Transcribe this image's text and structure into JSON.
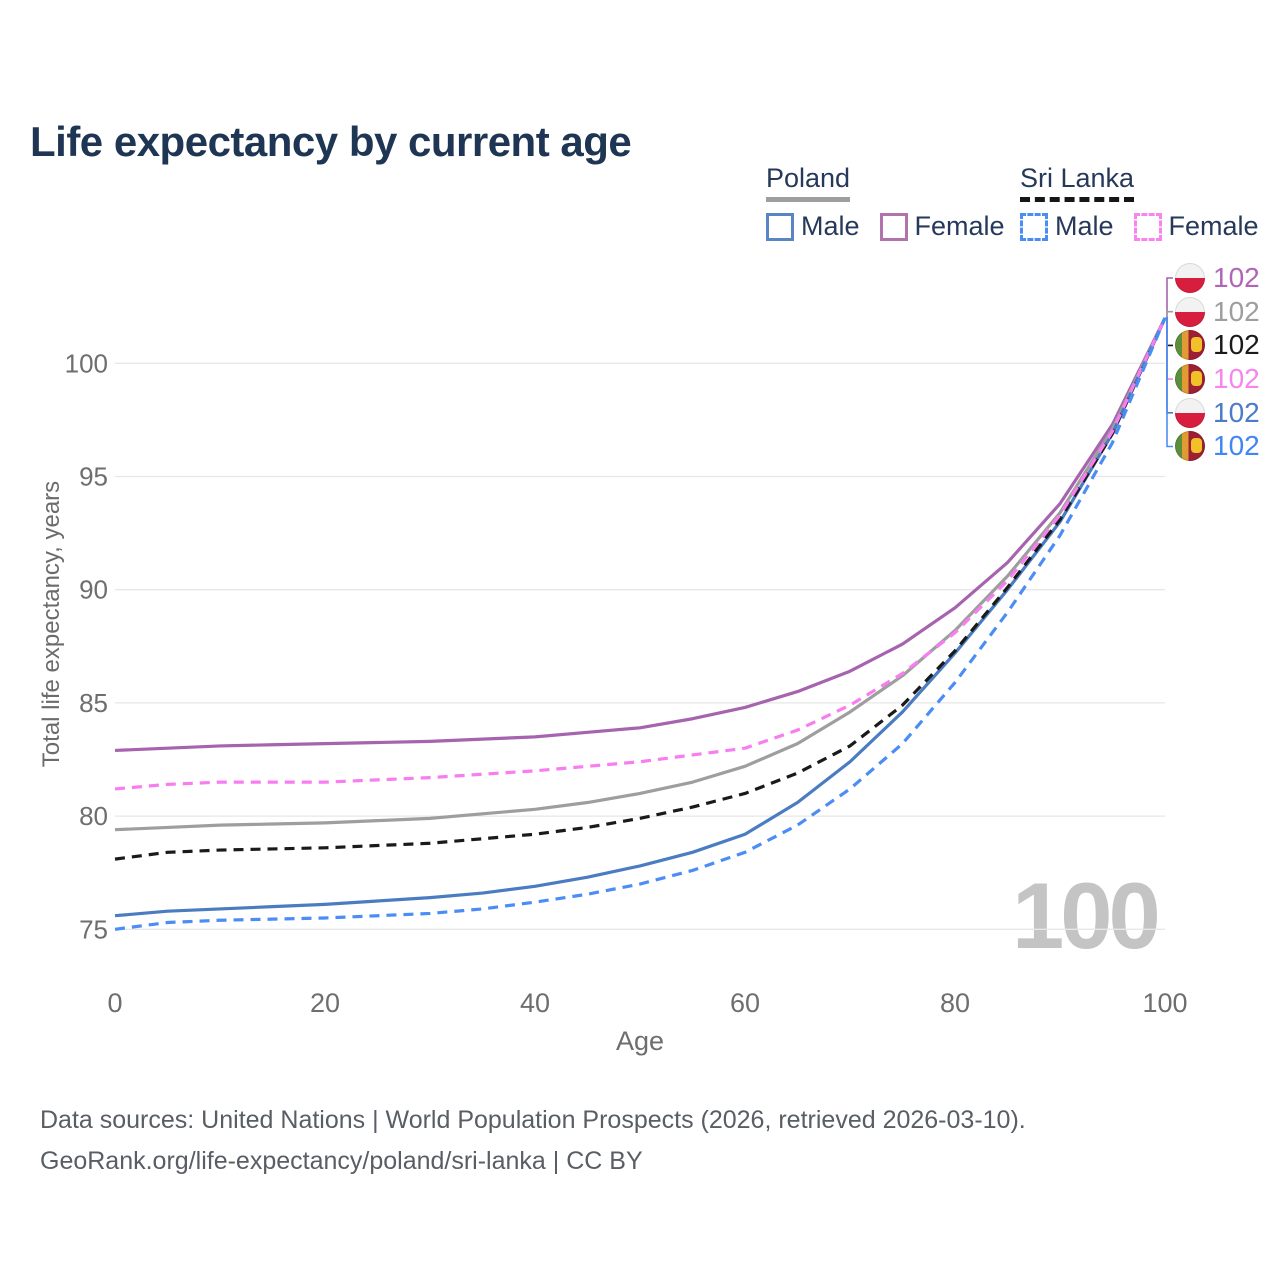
{
  "title": "Life expectancy by current age",
  "legend": {
    "poland": {
      "label": "Poland",
      "male_label": "Male",
      "female_label": "Female"
    },
    "sri_lanka": {
      "label": "Sri Lanka",
      "male_label": "Male",
      "female_label": "Female"
    }
  },
  "axes": {
    "y_title": "Total life expectancy, years",
    "x_title": "Age"
  },
  "watermark": "100",
  "colors": {
    "poland_male": "#4a7cc2",
    "poland_female": "#a663ae",
    "poland_all": "#9e9e9e",
    "sri_lanka_male": "#4c8df5",
    "sri_lanka_female": "#f77df0",
    "sri_lanka_all": "#1a1a1a",
    "legend_poland_male_box": "#5b84c4",
    "legend_poland_female_box": "#b273ad",
    "legend_sri_lanka_male_box": "#4c8df5",
    "legend_sri_lanka_female_box": "#f884f0",
    "title_text": "#1e3553",
    "axis_text": "#6e6e6e",
    "grid": "#e7e7e7",
    "watermark_text": "#c4c4c4"
  },
  "end_labels": [
    {
      "flag": "poland",
      "value": "102",
      "color": "#b065b8",
      "series": 0
    },
    {
      "flag": "poland",
      "value": "102",
      "color": "#9e9e9e",
      "series": 1
    },
    {
      "flag": "sri-lanka",
      "value": "102",
      "color": "#1a1a1a",
      "series": 2
    },
    {
      "flag": "sri-lanka",
      "value": "102",
      "color": "#f884f0",
      "series": 3
    },
    {
      "flag": "poland",
      "value": "102",
      "color": "#4a7cc7",
      "series": 4
    },
    {
      "flag": "sri-lanka",
      "value": "102",
      "color": "#4285f4",
      "series": 5
    }
  ],
  "footer": {
    "line1": "Data sources: United Nations | World Population Prospects (2026, retrieved 2026-03-10).",
    "line2": "GeoRank.org/life-expectancy/poland/sri-lanka | CC BY"
  },
  "chart_data": {
    "type": "line",
    "title": "Life expectancy by current age",
    "xlabel": "Age",
    "ylabel": "Total life expectancy, years",
    "xlim": [
      0,
      100
    ],
    "ylim": [
      74,
      103
    ],
    "x_ticks": [
      0,
      20,
      40,
      60,
      80,
      100
    ],
    "y_ticks": [
      75,
      80,
      85,
      90,
      95,
      100
    ],
    "grid": "horizontal",
    "legend_position": "top-right",
    "x": [
      0,
      5,
      10,
      15,
      20,
      25,
      30,
      35,
      40,
      45,
      50,
      55,
      60,
      65,
      70,
      75,
      80,
      85,
      90,
      95,
      100
    ],
    "series": [
      {
        "name": "Poland Female",
        "country": "Poland",
        "sex": "female",
        "style": "solid",
        "color": "#a663ae",
        "values": [
          82.9,
          83.0,
          83.1,
          83.15,
          83.2,
          83.25,
          83.3,
          83.4,
          83.5,
          83.7,
          83.9,
          84.3,
          84.8,
          85.5,
          86.4,
          87.6,
          89.2,
          91.2,
          93.8,
          97.3,
          102
        ]
      },
      {
        "name": "Poland Both sexes",
        "country": "Poland",
        "sex": "all",
        "style": "solid",
        "color": "#9e9e9e",
        "values": [
          79.4,
          79.5,
          79.6,
          79.65,
          79.7,
          79.8,
          79.9,
          80.1,
          80.3,
          80.6,
          81.0,
          81.5,
          82.2,
          83.2,
          84.6,
          86.2,
          88.2,
          90.6,
          93.4,
          97.1,
          102
        ]
      },
      {
        "name": "Sri Lanka Both sexes",
        "country": "Sri Lanka",
        "sex": "all",
        "style": "dashed",
        "color": "#1a1a1a",
        "values": [
          78.1,
          78.4,
          78.5,
          78.55,
          78.6,
          78.7,
          78.8,
          79.0,
          79.2,
          79.5,
          79.9,
          80.4,
          81.0,
          81.9,
          83.1,
          84.9,
          87.3,
          90.1,
          93.1,
          96.9,
          102
        ]
      },
      {
        "name": "Sri Lanka Female",
        "country": "Sri Lanka",
        "sex": "female",
        "style": "dashed",
        "color": "#f77df0",
        "values": [
          81.2,
          81.4,
          81.5,
          81.5,
          81.5,
          81.6,
          81.7,
          81.85,
          82.0,
          82.2,
          82.4,
          82.7,
          83.0,
          83.8,
          84.9,
          86.3,
          88.1,
          90.4,
          93.3,
          97.0,
          102
        ]
      },
      {
        "name": "Poland Male",
        "country": "Poland",
        "sex": "male",
        "style": "solid",
        "color": "#4a7cc2",
        "values": [
          75.6,
          75.8,
          75.9,
          76.0,
          76.1,
          76.25,
          76.4,
          76.6,
          76.9,
          77.3,
          77.8,
          78.4,
          79.2,
          80.6,
          82.4,
          84.6,
          87.2,
          90.0,
          93.0,
          96.9,
          102
        ]
      },
      {
        "name": "Sri Lanka Male",
        "country": "Sri Lanka",
        "sex": "male",
        "style": "dashed",
        "color": "#4c8df5",
        "values": [
          75.0,
          75.3,
          75.4,
          75.45,
          75.5,
          75.6,
          75.7,
          75.9,
          76.2,
          76.55,
          77.0,
          77.6,
          78.4,
          79.6,
          81.2,
          83.2,
          85.9,
          89.0,
          92.4,
          96.5,
          102
        ]
      }
    ],
    "end_value_age": 100,
    "end_value": 102
  }
}
